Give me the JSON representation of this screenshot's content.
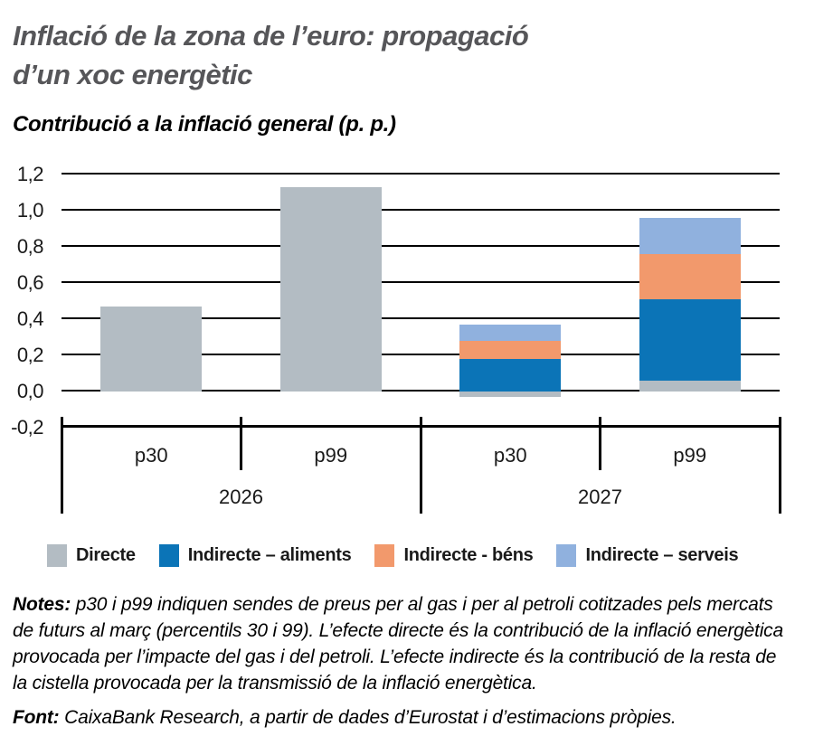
{
  "header": {
    "title_lines": [
      "Inflació de la zona de l’euro: propagació",
      "d’un xoc energètic"
    ],
    "subtitle": "Contribució a la inflació general (p. p.)"
  },
  "chart_data": {
    "type": "bar",
    "stacked": true,
    "title": "Inflació de la zona de l’euro: propagació d’un xoc energètic",
    "subtitle": "Contribució a la inflació general (p. p.)",
    "ylabel": "Contribució a la inflació general (p. p.)",
    "xlabel": "",
    "categories": [
      "p30",
      "p99",
      "p30",
      "p99"
    ],
    "groups": [
      {
        "label": "2026",
        "span": [
          0,
          1
        ]
      },
      {
        "label": "2027",
        "span": [
          2,
          3
        ]
      }
    ],
    "series": [
      {
        "name": "Directe",
        "color": "#b3bcc3",
        "values": [
          0.47,
          1.13,
          -0.03,
          0.06
        ]
      },
      {
        "name": "Indirecte – aliments",
        "color": "#0b74b7",
        "values": [
          0,
          0,
          0.18,
          0.45
        ]
      },
      {
        "name": "Indirecte - béns",
        "color": "#f2996c",
        "values": [
          0,
          0,
          0.1,
          0.25
        ]
      },
      {
        "name": "Indirecte – serveis",
        "color": "#90b1de",
        "values": [
          0,
          0,
          0.09,
          0.2
        ]
      }
    ],
    "ylim": [
      -0.2,
      1.2
    ],
    "ytick_step": 0.2,
    "ytick_labels": [
      "1,2",
      "1,0",
      "0,8",
      "0,6",
      "0,4",
      "0,2",
      "0,0",
      "-0,2"
    ],
    "grid": true,
    "legend_position": "bottom"
  },
  "footer": {
    "notes_label": "Notes:",
    "notes_lines": [
      "p30 i p99 indiquen sendes de preus per al gas i per al petroli cotitzades pels mercats",
      "de futurs al març (percentils 30 i 99). L’efecte directe és la contribució de la inflació energètica",
      "provocada per l’impacte del gas i del petroli. L’efecte indirecte és la contribució de la resta de",
      "la cistella provocada per la transmissió de la inflació energètica."
    ],
    "font_label": "Font:",
    "font_text": "CaixaBank Research, a partir de dades d’Eurostat i d’estimacions pròpies."
  },
  "colors": {
    "title": "#565659",
    "text": "#000000",
    "axis": "#000000",
    "background": "#ffffff"
  }
}
